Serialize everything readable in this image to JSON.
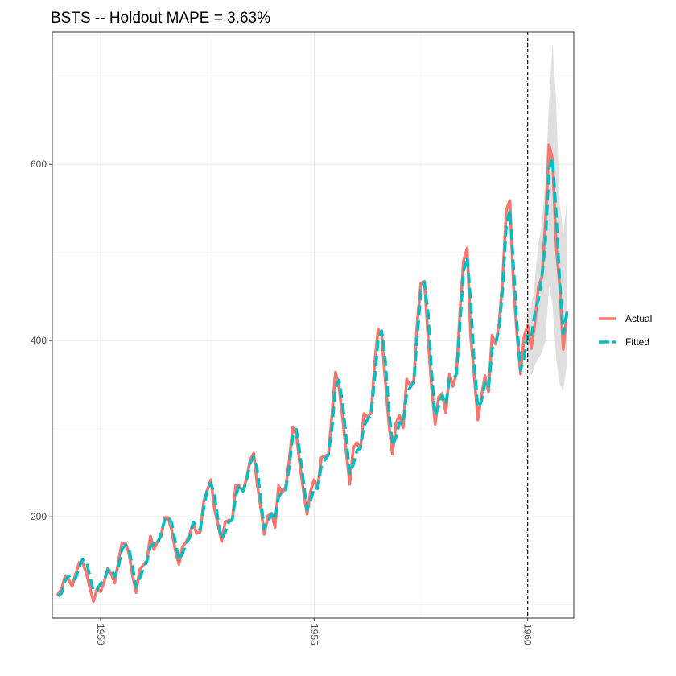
{
  "chart_data": {
    "type": "line",
    "title": "BSTS -- Holdout MAPE = 3.63%",
    "xlabel": "",
    "ylabel": "",
    "xlim": [
      1948.87,
      1961.08
    ],
    "ylim": [
      85,
      750
    ],
    "x_ticks": [
      1950,
      1955,
      1960
    ],
    "y_ticks": [
      200,
      400,
      600
    ],
    "grid": true,
    "legend_position": "right",
    "holdout_start": 1960.0,
    "colors": {
      "actual": "#F8766D",
      "fitted": "#00BFC4",
      "interval": "#d9d9d9"
    },
    "x_start_year": 1949,
    "series": [
      {
        "name": "Actual",
        "style": "solid",
        "values": [
          112,
          118,
          132,
          129,
          121,
          135,
          148,
          148,
          136,
          119,
          104,
          118,
          115,
          126,
          141,
          135,
          125,
          149,
          170,
          170,
          158,
          133,
          114,
          140,
          145,
          150,
          178,
          163,
          172,
          178,
          199,
          199,
          184,
          162,
          146,
          166,
          171,
          180,
          193,
          181,
          183,
          218,
          230,
          242,
          209,
          191,
          172,
          194,
          196,
          196,
          236,
          235,
          229,
          243,
          264,
          272,
          237,
          211,
          180,
          201,
          204,
          188,
          235,
          227,
          234,
          264,
          302,
          293,
          259,
          229,
          203,
          229,
          242,
          233,
          267,
          269,
          270,
          315,
          364,
          347,
          312,
          274,
          237,
          278,
          284,
          277,
          317,
          313,
          318,
          374,
          413,
          405,
          355,
          306,
          271,
          306,
          315,
          301,
          356,
          348,
          355,
          422,
          465,
          467,
          404,
          347,
          305,
          336,
          340,
          318,
          362,
          348,
          363,
          435,
          491,
          505,
          404,
          359,
          310,
          337,
          360,
          342,
          406,
          396,
          420,
          472,
          548,
          559,
          463,
          407,
          362,
          405,
          417,
          391,
          419,
          461,
          472,
          535,
          622,
          606,
          508,
          461,
          390,
          432
        ]
      },
      {
        "name": "Fitted",
        "style": "dashed",
        "values": [
          110,
          113,
          127,
          133,
          128,
          130,
          143,
          152,
          150,
          132,
          116,
          117,
          124,
          128,
          139,
          141,
          132,
          143,
          163,
          168,
          163,
          143,
          120,
          130,
          141,
          149,
          166,
          170,
          168,
          182,
          196,
          200,
          193,
          172,
          151,
          158,
          169,
          176,
          194,
          190,
          186,
          210,
          232,
          238,
          225,
          196,
          175,
          182,
          194,
          196,
          224,
          236,
          229,
          240,
          261,
          268,
          254,
          220,
          186,
          194,
          203,
          197,
          222,
          229,
          230,
          256,
          292,
          299,
          272,
          240,
          208,
          218,
          233,
          232,
          257,
          265,
          270,
          300,
          346,
          355,
          329,
          290,
          249,
          259,
          275,
          278,
          303,
          310,
          316,
          356,
          401,
          411,
          377,
          322,
          281,
          290,
          307,
          305,
          340,
          347,
          352,
          405,
          456,
          466,
          432,
          365,
          315,
          325,
          338,
          328,
          356,
          356,
          362,
          420,
          479,
          495,
          444,
          375,
          324,
          331,
          352,
          346,
          390,
          396,
          414,
          460,
          531,
          548,
          486,
          418,
          366,
          380,
          406,
          403,
          431,
          446,
          472,
          512,
          595,
          607,
          544,
          468,
          408,
          432
        ]
      }
    ],
    "interval": {
      "x_start": 1960.0,
      "lower": [
        372,
        360,
        372,
        380,
        386,
        400,
        462,
        440,
        380,
        350,
        343,
        372
      ],
      "upper": [
        436,
        437,
        468,
        510,
        533,
        583,
        670,
        738,
        670,
        556,
        520,
        560
      ]
    }
  }
}
